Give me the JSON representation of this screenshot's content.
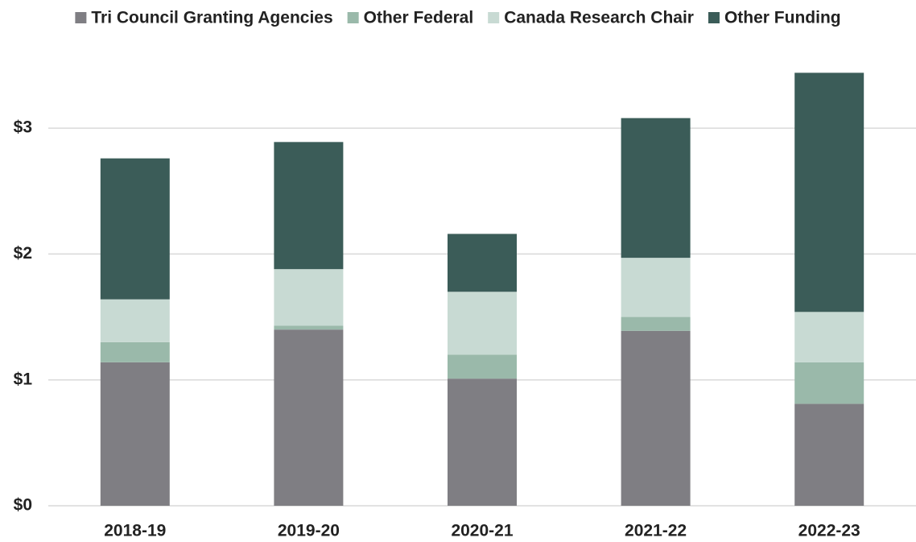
{
  "chart_data": {
    "type": "stacked_bar",
    "categories": [
      "2018-19",
      "2019-20",
      "2020-21",
      "2021-22",
      "2022-23"
    ],
    "series": [
      {
        "name": "Tri Council Granting Agencies",
        "color": "#7f7e83",
        "values": [
          1.14,
          1.4,
          1.01,
          1.39,
          0.81
        ]
      },
      {
        "name": "Other Federal",
        "color": "#9ab9aa",
        "values": [
          0.16,
          0.03,
          0.19,
          0.11,
          0.33
        ]
      },
      {
        "name": "Canada Research Chair",
        "color": "#c8dad3",
        "values": [
          0.34,
          0.45,
          0.5,
          0.47,
          0.4
        ]
      },
      {
        "name": "Other Funding",
        "color": "#3b5c58",
        "values": [
          1.12,
          1.01,
          0.46,
          1.11,
          1.9
        ]
      }
    ],
    "ylim": [
      0,
      3.5
    ],
    "yticks": [
      {
        "value": 0,
        "label": "$0"
      },
      {
        "value": 1,
        "label": "$1"
      },
      {
        "value": 2,
        "label": "$2"
      },
      {
        "value": 3,
        "label": "$3"
      }
    ],
    "grid": true,
    "legend": "top"
  }
}
